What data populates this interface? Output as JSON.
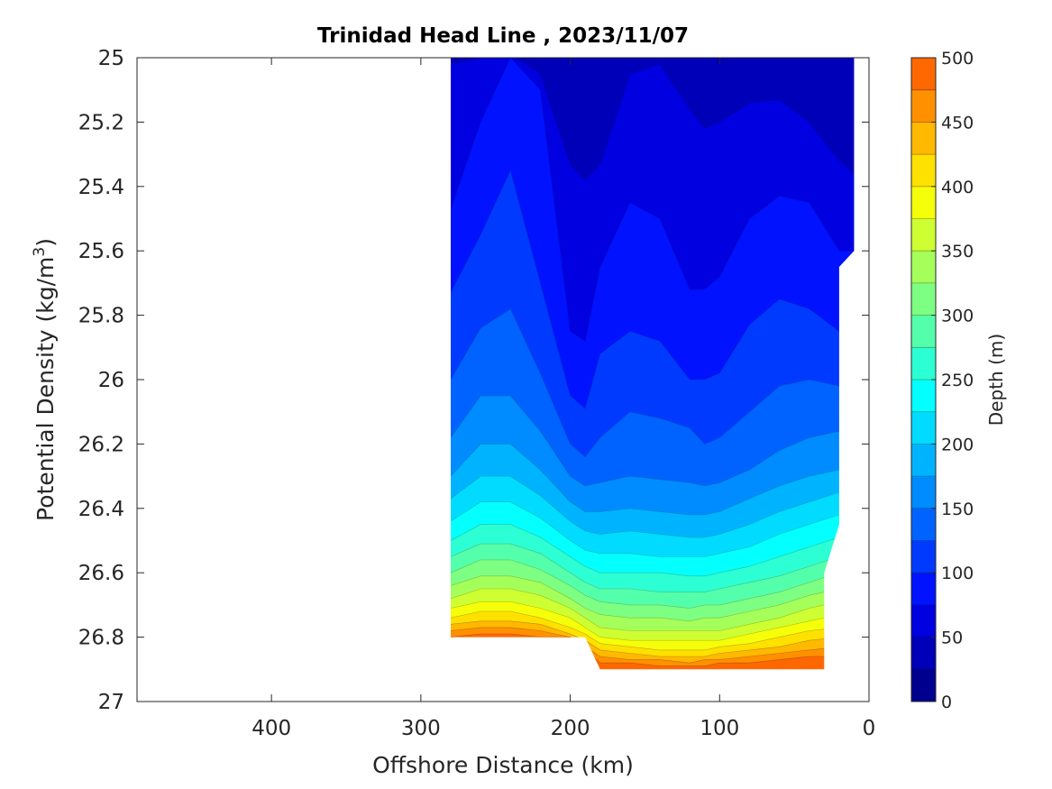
{
  "chart_data": {
    "type": "filled-contour",
    "title": "Trinidad Head Line , 2023/11/07",
    "xlabel": "Offshore Distance (km)",
    "ylabel": "Potential Density (kg/m",
    "ylabel_superscript": "3",
    "ylabel_suffix": ")",
    "xlim": [
      490,
      0
    ],
    "ylim": [
      27,
      25
    ],
    "x_reversed": true,
    "y_reversed": true,
    "x_ticks": [
      400,
      300,
      200,
      100,
      0
    ],
    "y_ticks": [
      25,
      25.2,
      25.4,
      25.6,
      25.8,
      26,
      26.2,
      26.4,
      26.6,
      26.8,
      27
    ],
    "x_tick_labels": [
      "400",
      "300",
      "200",
      "100",
      "0"
    ],
    "y_tick_labels": [
      "25",
      "25.2",
      "25.4",
      "25.6",
      "25.8",
      "26",
      "26.2",
      "26.4",
      "26.6",
      "26.8",
      "27"
    ],
    "colorbar": {
      "label": "Depth (m)",
      "range": [
        0,
        500
      ],
      "step": 25,
      "ticks": [
        0,
        50,
        100,
        150,
        200,
        250,
        300,
        350,
        400,
        450,
        500
      ],
      "tick_labels": [
        "0",
        "50",
        "100",
        "150",
        "200",
        "250",
        "300",
        "350",
        "400",
        "450",
        "500"
      ],
      "colormap": "jet",
      "colors": [
        "#00008f",
        "#0000b8",
        "#0000e0",
        "#0012ff",
        "#003aff",
        "#0062ff",
        "#008bff",
        "#00b3ff",
        "#00dbff",
        "#04ffff",
        "#2cffd3",
        "#54ffab",
        "#7dff83",
        "#a5ff5a",
        "#cdff32",
        "#f5ff0a",
        "#ffe100",
        "#ffb900",
        "#ff9000",
        "#ff6800",
        "#ff4000",
        "#ff1800",
        "#ef0000",
        "#c70000"
      ]
    },
    "stations_km": [
      280,
      260,
      240,
      220,
      200,
      190,
      180,
      160,
      140,
      120,
      110,
      100,
      80,
      60,
      40,
      20,
      10
    ],
    "isobaths": [
      {
        "depth_m": 25,
        "density": [
          25.0,
          25.0,
          25.0,
          25.0,
          25.0,
          25.0,
          25.0,
          25.0,
          25.0,
          25.0,
          25.0,
          25.0,
          25.0,
          25.0,
          25.0,
          25.0,
          25.0
        ]
      },
      {
        "depth_m": 50,
        "density": [
          25.02,
          25.0,
          24.99,
          25.05,
          25.33,
          25.38,
          25.33,
          25.05,
          25.02,
          25.16,
          25.22,
          25.2,
          25.14,
          25.13,
          25.2,
          25.32,
          25.36
        ]
      },
      {
        "depth_m": 75,
        "density": [
          25.47,
          25.2,
          25.0,
          25.1,
          25.85,
          25.88,
          25.65,
          25.45,
          25.5,
          25.72,
          25.72,
          25.68,
          25.5,
          25.43,
          25.45,
          25.6,
          25.6
        ]
      },
      {
        "depth_m": 100,
        "density": [
          25.73,
          25.55,
          25.35,
          25.7,
          26.05,
          26.09,
          25.92,
          25.85,
          25.88,
          26.0,
          26.0,
          25.98,
          25.83,
          25.75,
          25.78,
          25.85,
          25.85
        ]
      },
      {
        "depth_m": 125,
        "density": [
          26.0,
          25.84,
          25.78,
          25.98,
          26.2,
          26.24,
          26.18,
          26.1,
          26.12,
          26.15,
          26.2,
          26.18,
          26.1,
          26.02,
          26.0,
          26.02,
          26.02
        ]
      },
      {
        "depth_m": 150,
        "density": [
          26.18,
          26.05,
          26.05,
          26.16,
          26.3,
          26.33,
          26.32,
          26.3,
          26.31,
          26.32,
          26.33,
          26.32,
          26.28,
          26.22,
          26.18,
          26.16,
          26.16
        ]
      },
      {
        "depth_m": 175,
        "density": [
          26.3,
          26.2,
          26.2,
          26.28,
          26.38,
          26.41,
          26.41,
          26.4,
          26.41,
          26.42,
          26.42,
          26.41,
          26.37,
          26.33,
          26.3,
          26.28,
          26.28
        ]
      },
      {
        "depth_m": 200,
        "density": [
          26.37,
          26.3,
          26.3,
          26.36,
          26.44,
          26.47,
          26.48,
          26.47,
          26.48,
          26.49,
          26.49,
          26.48,
          26.45,
          26.41,
          26.38,
          26.35,
          26.35
        ]
      },
      {
        "depth_m": 225,
        "density": [
          26.44,
          26.38,
          26.38,
          26.43,
          26.5,
          26.53,
          26.54,
          26.54,
          26.55,
          26.55,
          26.55,
          26.54,
          26.52,
          26.48,
          26.45,
          26.42,
          26.42
        ]
      },
      {
        "depth_m": 250,
        "density": [
          26.5,
          26.45,
          26.45,
          26.49,
          26.55,
          26.58,
          26.6,
          26.6,
          26.6,
          26.61,
          26.61,
          26.6,
          26.58,
          26.55,
          26.52,
          26.49,
          26.49
        ]
      },
      {
        "depth_m": 275,
        "density": [
          26.55,
          26.51,
          26.51,
          26.54,
          26.6,
          26.63,
          26.65,
          26.65,
          26.66,
          26.66,
          26.66,
          26.65,
          26.63,
          26.61,
          26.58,
          26.55,
          26.55
        ]
      },
      {
        "depth_m": 300,
        "density": [
          26.6,
          26.56,
          26.56,
          26.59,
          26.64,
          26.67,
          26.69,
          26.7,
          26.7,
          26.71,
          26.7,
          26.7,
          26.68,
          26.66,
          26.63,
          26.6,
          26.6
        ]
      },
      {
        "depth_m": 325,
        "density": [
          26.64,
          26.61,
          26.61,
          26.63,
          26.68,
          26.71,
          26.73,
          26.74,
          26.74,
          26.75,
          26.74,
          26.74,
          26.72,
          26.7,
          26.67,
          26.65,
          26.65
        ]
      },
      {
        "depth_m": 350,
        "density": [
          26.68,
          26.65,
          26.65,
          26.67,
          26.71,
          26.74,
          26.77,
          26.78,
          26.78,
          26.78,
          26.78,
          26.78,
          26.76,
          26.74,
          26.71,
          26.69,
          26.69
        ]
      },
      {
        "depth_m": 375,
        "density": [
          26.71,
          26.69,
          26.69,
          26.71,
          26.74,
          26.77,
          26.8,
          26.81,
          26.81,
          26.81,
          26.81,
          26.81,
          26.79,
          26.77,
          26.75,
          26.73,
          26.73
        ]
      },
      {
        "depth_m": 400,
        "density": [
          26.74,
          26.72,
          26.72,
          26.74,
          26.77,
          26.79,
          26.82,
          26.83,
          26.84,
          26.84,
          26.84,
          26.83,
          26.82,
          26.8,
          26.78,
          26.77,
          26.77
        ]
      },
      {
        "depth_m": 425,
        "density": [
          26.76,
          26.75,
          26.75,
          26.76,
          26.79,
          26.81,
          26.84,
          26.85,
          26.86,
          26.86,
          26.86,
          26.85,
          26.84,
          26.83,
          26.81,
          26.8,
          26.8
        ]
      },
      {
        "depth_m": 450,
        "density": [
          26.78,
          26.77,
          26.77,
          26.78,
          26.8,
          26.83,
          26.86,
          26.87,
          26.87,
          26.88,
          26.87,
          26.87,
          26.86,
          26.85,
          26.84,
          26.83,
          26.83
        ]
      },
      {
        "depth_m": 475,
        "density": [
          26.8,
          26.79,
          26.79,
          26.8,
          26.8,
          26.84,
          26.88,
          26.88,
          26.89,
          26.89,
          26.89,
          26.88,
          26.88,
          26.87,
          26.86,
          26.86,
          26.86
        ]
      }
    ],
    "data_domain": [
      [
        280,
        25.0
      ],
      [
        10,
        25.0
      ],
      [
        10,
        25.6
      ],
      [
        20,
        25.65
      ],
      [
        20,
        26.45
      ],
      [
        30,
        26.6
      ],
      [
        30,
        26.9
      ],
      [
        180,
        26.9
      ],
      [
        190,
        26.8
      ],
      [
        280,
        26.8
      ]
    ]
  }
}
